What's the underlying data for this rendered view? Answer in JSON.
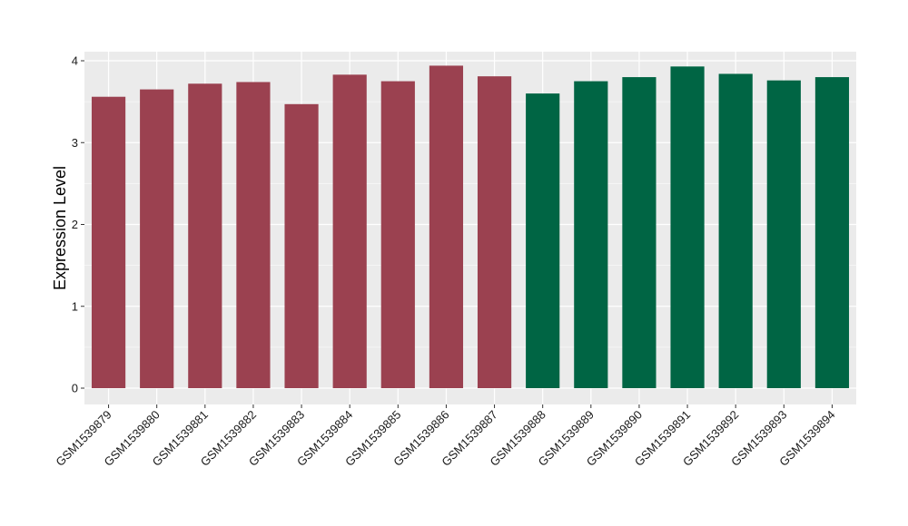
{
  "chart_data": {
    "type": "bar",
    "title": "",
    "xlabel": "",
    "ylabel": "Expression Level",
    "ylim": [
      0,
      4.12
    ],
    "yticks": [
      0,
      1,
      2,
      3,
      4
    ],
    "grid": true,
    "legend": "none",
    "categories": [
      "GSM1539879",
      "GSM1539880",
      "GSM1539881",
      "GSM1539882",
      "GSM1539883",
      "GSM1539884",
      "GSM1539885",
      "GSM1539886",
      "GSM1539887",
      "GSM1539888",
      "GSM1539889",
      "GSM1539890",
      "GSM1539891",
      "GSM1539892",
      "GSM1539893",
      "GSM1539894"
    ],
    "values": [
      3.56,
      3.65,
      3.72,
      3.74,
      3.47,
      3.83,
      3.75,
      3.94,
      3.81,
      3.6,
      3.75,
      3.8,
      3.93,
      3.84,
      3.76,
      3.8
    ],
    "bar_colors": [
      "#9b4150",
      "#9b4150",
      "#9b4150",
      "#9b4150",
      "#9b4150",
      "#9b4150",
      "#9b4150",
      "#9b4150",
      "#9b4150",
      "#006544",
      "#006544",
      "#006544",
      "#006544",
      "#006544",
      "#006544",
      "#006544"
    ],
    "panel_background": "#ebebeb",
    "grid_color": "#ffffff"
  }
}
